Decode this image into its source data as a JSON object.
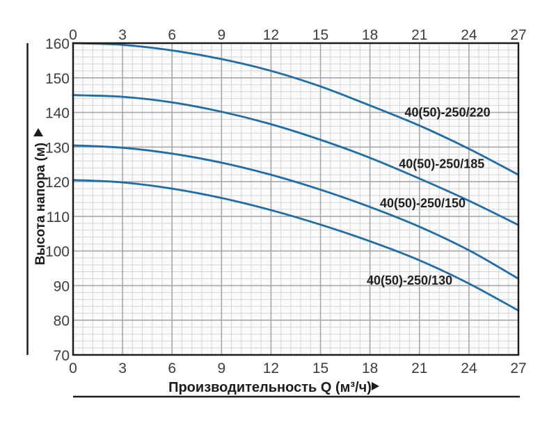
{
  "chart_data": {
    "type": "line",
    "title": "",
    "xlabel": "Производительность Q (м³/ч)",
    "ylabel": "Высота напора (м)",
    "xlim": [
      0,
      27
    ],
    "ylim": [
      70,
      160
    ],
    "x_ticks": [
      0,
      3,
      6,
      9,
      12,
      15,
      18,
      21,
      24,
      27
    ],
    "y_ticks": [
      70,
      80,
      90,
      100,
      110,
      120,
      130,
      140,
      150,
      160
    ],
    "x_tick_positions": "top and bottom",
    "x_minor_step": 0.6,
    "y_minor_step": 2,
    "grid": "major and minor on",
    "legend_position": "inline labels beside curves",
    "x": [
      0,
      3,
      6,
      9,
      12,
      15,
      18,
      21,
      24,
      27
    ],
    "series": [
      {
        "name": "40(50)-250/220",
        "values": [
          160,
          159.5,
          157.9,
          155.4,
          152,
          147.5,
          142,
          136.2,
          129.5,
          122
        ],
        "label_x": 22.7,
        "label_y": 140.1
      },
      {
        "name": "40(50)-250/185",
        "values": [
          145,
          144.5,
          142.9,
          140.2,
          136.6,
          132.1,
          126.9,
          120.9,
          114.5,
          107.5
        ],
        "label_x": 22.35,
        "label_y": 125.2
      },
      {
        "name": "40(50)-250/150",
        "values": [
          130.5,
          129.8,
          128.1,
          125.5,
          122,
          117.7,
          112.7,
          107,
          100.2,
          92
        ],
        "label_x": 21.2,
        "label_y": 113.9
      },
      {
        "name": "40(50)-250/130",
        "values": [
          120.5,
          119.8,
          118,
          115.3,
          111.8,
          107.6,
          102.8,
          97.3,
          90.6,
          82.8
        ],
        "label_x": 20.4,
        "label_y": 91.6
      }
    ],
    "colors": {
      "curve": "#1f6da6",
      "axis": "#1c1c1c",
      "grid_major": "#a4a8ad",
      "grid_minor": "#d3d5d7",
      "tick_text": "#3d3d3d",
      "curve_label_text": "#1f1f1f",
      "plot_background": "#fbfbfb",
      "page_background": "#ffffff"
    }
  }
}
